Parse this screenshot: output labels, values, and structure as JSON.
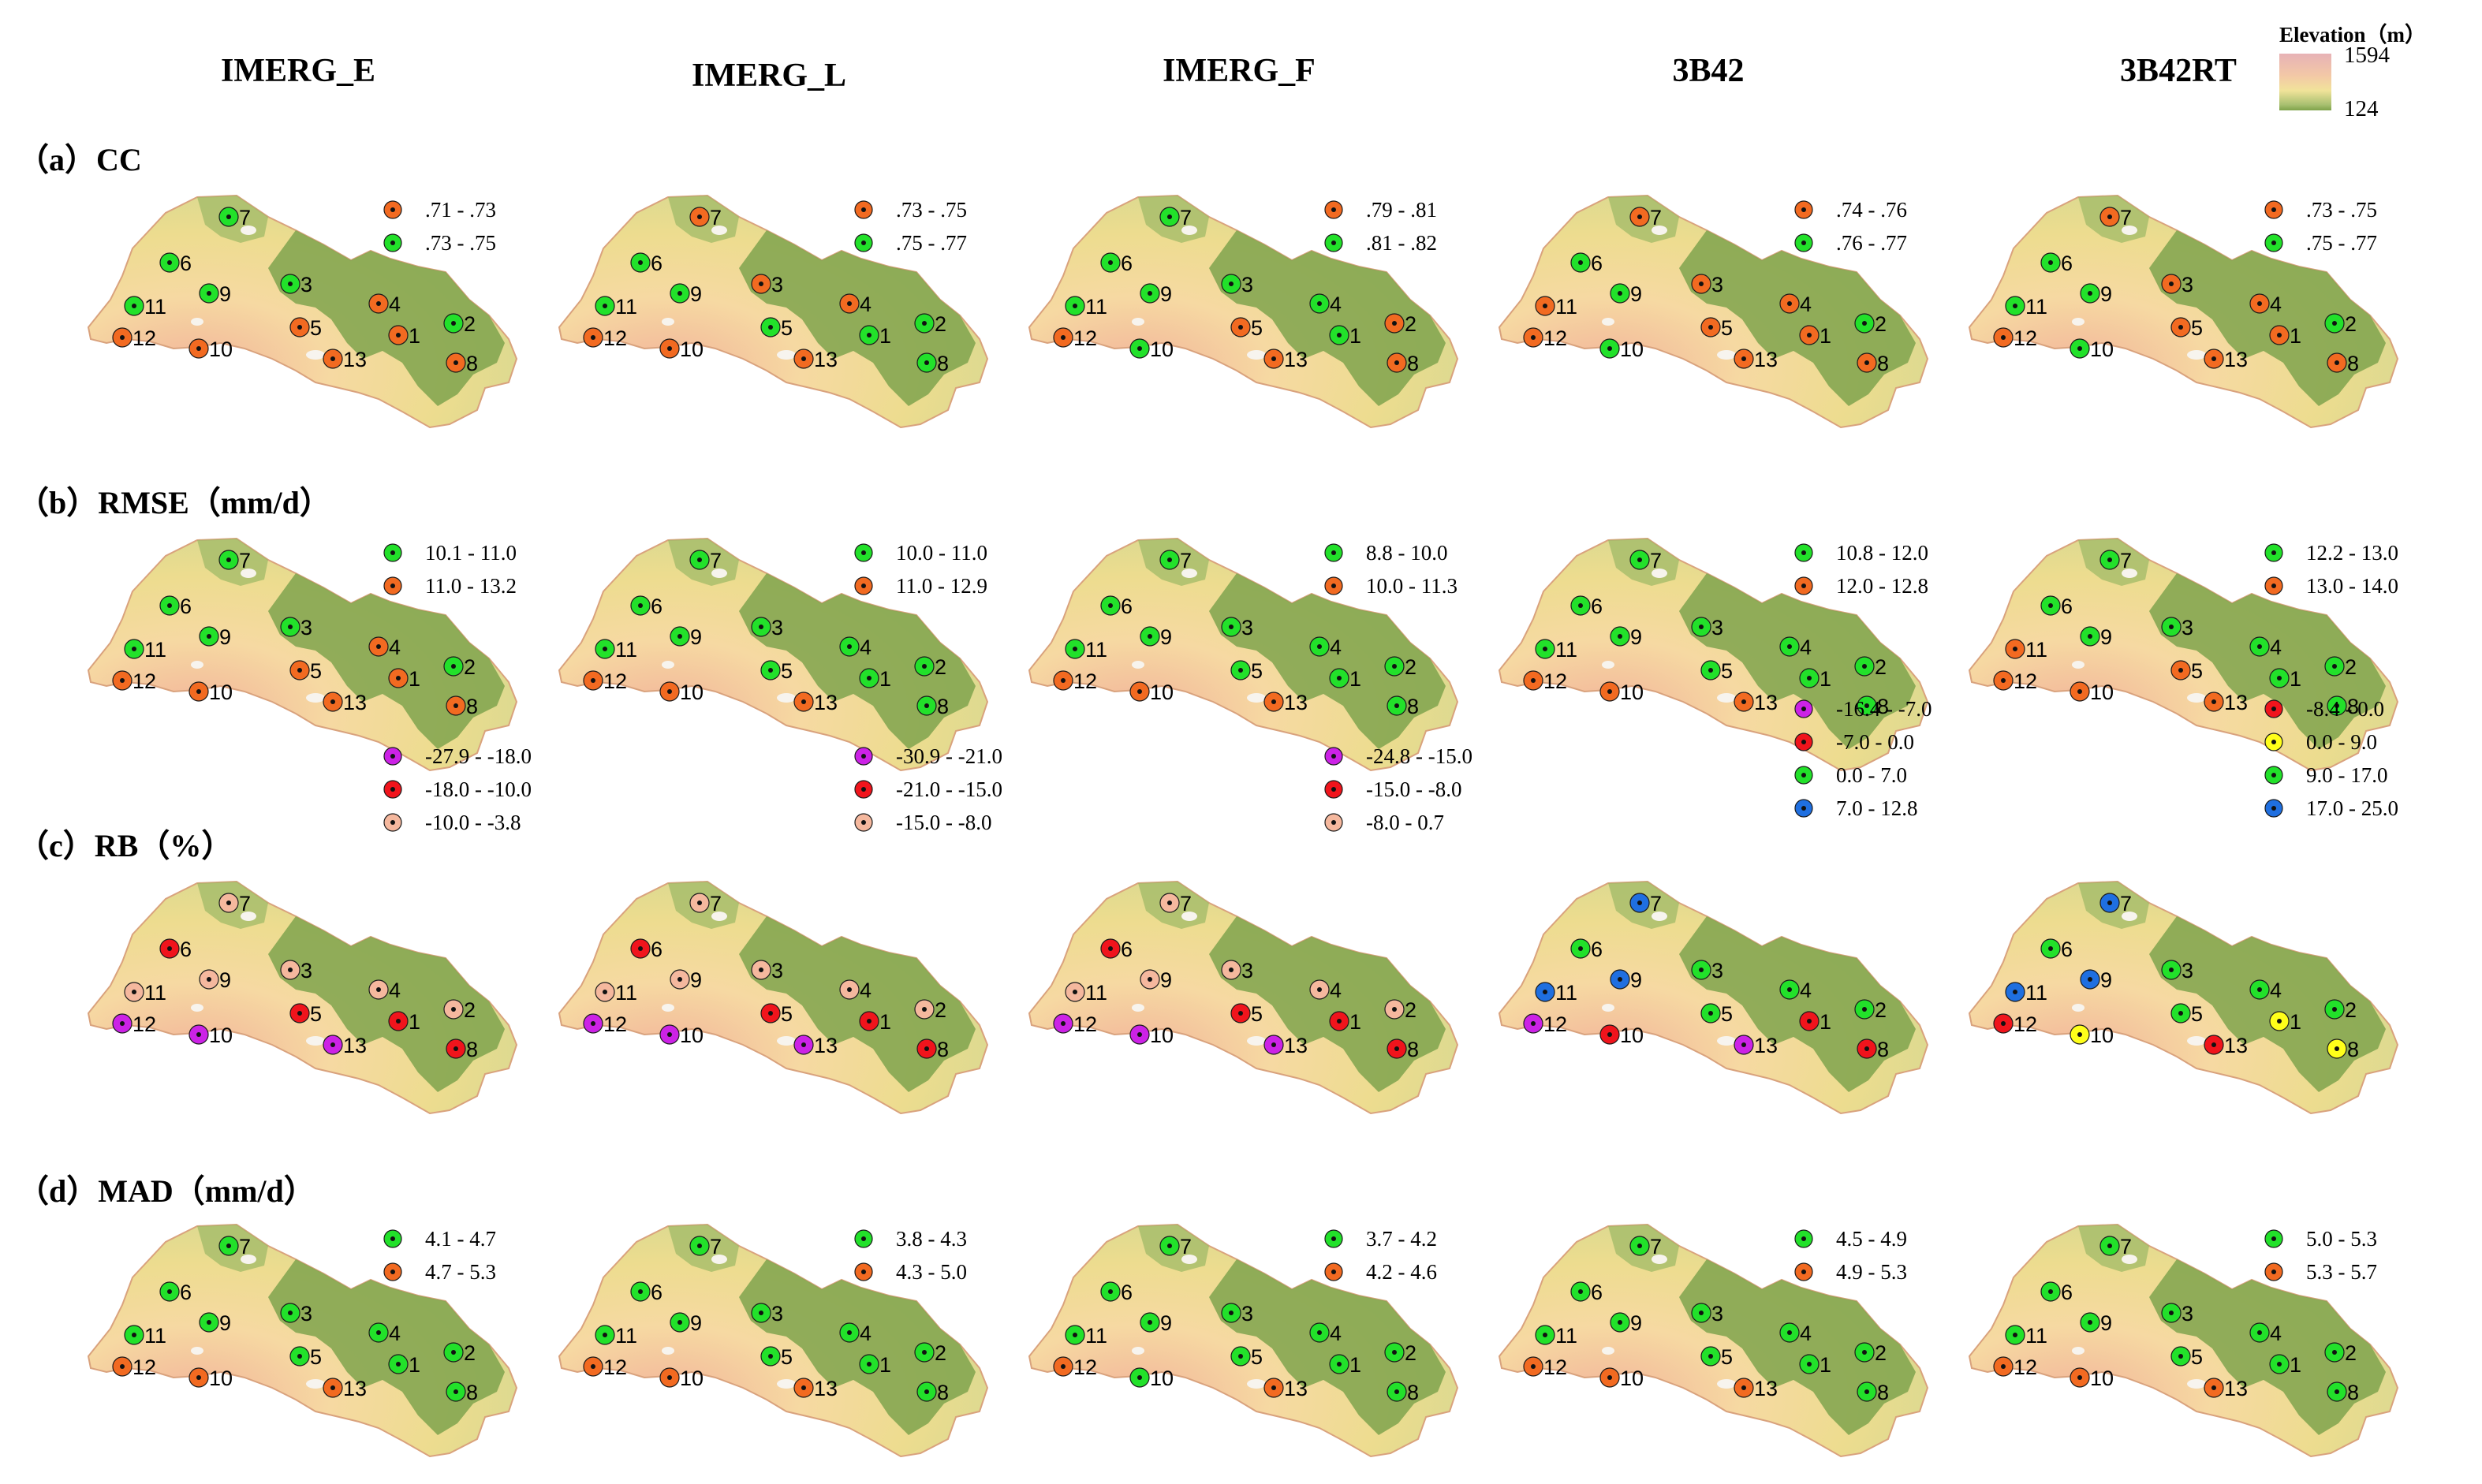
{
  "header": {
    "columns": [
      "IMERG_E",
      "IMERG_L",
      "IMERG_F",
      "3B42",
      "3B42RT"
    ],
    "elevation_legend": {
      "title": "Elevation（m）",
      "max": "1594",
      "min": "124"
    }
  },
  "colors": {
    "orange": "#f26a21",
    "green": "#22e12a",
    "magenta": "#cc22e6",
    "red": "#f0141c",
    "salmon": "#f5b89e",
    "blue": "#1f6fe0",
    "yellow": "#ffff1a"
  },
  "chart_data": {
    "type": "map",
    "stations": [
      "1",
      "2",
      "3",
      "4",
      "5",
      "6",
      "7",
      "8",
      "9",
      "10",
      "11",
      "12",
      "13"
    ],
    "panels": [
      {
        "label": "（a）CC",
        "metric": "CC",
        "products": [
          {
            "product": "IMERG_E",
            "legend": [
              {
                "range": ".71 - .73",
                "color": "orange"
              },
              {
                "range": ".73 - .75",
                "color": "green"
              }
            ],
            "stations": {
              "1": "orange",
              "2": "green",
              "3": "green",
              "4": "orange",
              "5": "orange",
              "6": "green",
              "7": "green",
              "8": "orange",
              "9": "green",
              "10": "orange",
              "11": "green",
              "12": "orange",
              "13": "orange"
            }
          },
          {
            "product": "IMERG_L",
            "legend": [
              {
                "range": ".73 - .75",
                "color": "orange"
              },
              {
                "range": ".75 - .77",
                "color": "green"
              }
            ],
            "stations": {
              "1": "green",
              "2": "green",
              "3": "orange",
              "4": "orange",
              "5": "green",
              "6": "green",
              "7": "orange",
              "8": "green",
              "9": "green",
              "10": "orange",
              "11": "green",
              "12": "orange",
              "13": "orange"
            }
          },
          {
            "product": "IMERG_F",
            "legend": [
              {
                "range": ".79 - .81",
                "color": "orange"
              },
              {
                "range": ".81 - .82",
                "color": "green"
              }
            ],
            "stations": {
              "1": "green",
              "2": "orange",
              "3": "green",
              "4": "green",
              "5": "orange",
              "6": "green",
              "7": "green",
              "8": "orange",
              "9": "green",
              "10": "green",
              "11": "green",
              "12": "orange",
              "13": "orange"
            }
          },
          {
            "product": "3B42",
            "legend": [
              {
                "range": ".74 - .76",
                "color": "orange"
              },
              {
                "range": ".76 - .77",
                "color": "green"
              }
            ],
            "stations": {
              "1": "orange",
              "2": "green",
              "3": "orange",
              "4": "orange",
              "5": "orange",
              "6": "green",
              "7": "orange",
              "8": "orange",
              "9": "green",
              "10": "green",
              "11": "orange",
              "12": "orange",
              "13": "orange"
            }
          },
          {
            "product": "3B42RT",
            "legend": [
              {
                "range": ".73 - .75",
                "color": "orange"
              },
              {
                "range": ".75 - .77",
                "color": "green"
              }
            ],
            "stations": {
              "1": "orange",
              "2": "green",
              "3": "orange",
              "4": "orange",
              "5": "orange",
              "6": "green",
              "7": "orange",
              "8": "orange",
              "9": "green",
              "10": "green",
              "11": "green",
              "12": "orange",
              "13": "orange"
            }
          }
        ]
      },
      {
        "label": "（b）RMSE（mm/d）",
        "metric": "RMSE",
        "products": [
          {
            "product": "IMERG_E",
            "legend": [
              {
                "range": "10.1 - 11.0",
                "color": "green"
              },
              {
                "range": "11.0 - 13.2",
                "color": "orange"
              }
            ],
            "stations": {
              "1": "orange",
              "2": "green",
              "3": "green",
              "4": "orange",
              "5": "orange",
              "6": "green",
              "7": "green",
              "8": "orange",
              "9": "green",
              "10": "orange",
              "11": "green",
              "12": "orange",
              "13": "orange"
            }
          },
          {
            "product": "IMERG_L",
            "legend": [
              {
                "range": "10.0 - 11.0",
                "color": "green"
              },
              {
                "range": "11.0 - 12.9",
                "color": "orange"
              }
            ],
            "stations": {
              "1": "green",
              "2": "green",
              "3": "green",
              "4": "green",
              "5": "green",
              "6": "green",
              "7": "green",
              "8": "green",
              "9": "green",
              "10": "orange",
              "11": "green",
              "12": "orange",
              "13": "orange"
            }
          },
          {
            "product": "IMERG_F",
            "legend": [
              {
                "range": "8.8 - 10.0",
                "color": "green"
              },
              {
                "range": "10.0 - 11.3",
                "color": "orange"
              }
            ],
            "stations": {
              "1": "green",
              "2": "green",
              "3": "green",
              "4": "green",
              "5": "green",
              "6": "green",
              "7": "green",
              "8": "green",
              "9": "green",
              "10": "orange",
              "11": "green",
              "12": "orange",
              "13": "orange"
            }
          },
          {
            "product": "3B42",
            "legend": [
              {
                "range": "10.8 - 12.0",
                "color": "green"
              },
              {
                "range": "12.0 - 12.8",
                "color": "orange"
              }
            ],
            "stations": {
              "1": "green",
              "2": "green",
              "3": "green",
              "4": "green",
              "5": "green",
              "6": "green",
              "7": "green",
              "8": "green",
              "9": "green",
              "10": "orange",
              "11": "green",
              "12": "orange",
              "13": "orange"
            }
          },
          {
            "product": "3B42RT",
            "legend": [
              {
                "range": "12.2 - 13.0",
                "color": "green"
              },
              {
                "range": "13.0 - 14.0",
                "color": "orange"
              }
            ],
            "stations": {
              "1": "green",
              "2": "green",
              "3": "green",
              "4": "green",
              "5": "orange",
              "6": "green",
              "7": "green",
              "8": "green",
              "9": "green",
              "10": "orange",
              "11": "orange",
              "12": "orange",
              "13": "orange"
            }
          }
        ]
      },
      {
        "label": "（c）RB（%）",
        "metric": "RB",
        "products": [
          {
            "product": "IMERG_E",
            "legend": [
              {
                "range": "-27.9 - -18.0",
                "color": "magenta"
              },
              {
                "range": "-18.0 - -10.0",
                "color": "red"
              },
              {
                "range": "-10.0 - -3.8",
                "color": "salmon"
              }
            ],
            "stations": {
              "1": "red",
              "2": "salmon",
              "3": "salmon",
              "4": "salmon",
              "5": "red",
              "6": "red",
              "7": "salmon",
              "8": "red",
              "9": "salmon",
              "10": "magenta",
              "11": "salmon",
              "12": "magenta",
              "13": "magenta"
            }
          },
          {
            "product": "IMERG_L",
            "legend": [
              {
                "range": "-30.9 - -21.0",
                "color": "magenta"
              },
              {
                "range": "-21.0 - -15.0",
                "color": "red"
              },
              {
                "range": "-15.0 - -8.0",
                "color": "salmon"
              }
            ],
            "stations": {
              "1": "red",
              "2": "salmon",
              "3": "salmon",
              "4": "salmon",
              "5": "red",
              "6": "red",
              "7": "salmon",
              "8": "red",
              "9": "salmon",
              "10": "magenta",
              "11": "salmon",
              "12": "magenta",
              "13": "magenta"
            }
          },
          {
            "product": "IMERG_F",
            "legend": [
              {
                "range": "-24.8 - -15.0",
                "color": "magenta"
              },
              {
                "range": "-15.0 - -8.0",
                "color": "red"
              },
              {
                "range": "-8.0 - 0.7",
                "color": "salmon"
              }
            ],
            "stations": {
              "1": "red",
              "2": "salmon",
              "3": "salmon",
              "4": "salmon",
              "5": "red",
              "6": "red",
              "7": "salmon",
              "8": "red",
              "9": "salmon",
              "10": "magenta",
              "11": "salmon",
              "12": "magenta",
              "13": "magenta"
            }
          },
          {
            "product": "3B42",
            "legend": [
              {
                "range": "-16.4 - -7.0",
                "color": "magenta"
              },
              {
                "range": "-7.0 - 0.0",
                "color": "red"
              },
              {
                "range": "0.0 - 7.0",
                "color": "green"
              },
              {
                "range": "7.0 - 12.8",
                "color": "blue"
              }
            ],
            "stations": {
              "1": "red",
              "2": "green",
              "3": "green",
              "4": "green",
              "5": "green",
              "6": "green",
              "7": "blue",
              "8": "red",
              "9": "blue",
              "10": "red",
              "11": "blue",
              "12": "magenta",
              "13": "magenta"
            }
          },
          {
            "product": "3B42RT",
            "legend": [
              {
                "range": "-8.4 - 0.0",
                "color": "red"
              },
              {
                "range": "0.0 - 9.0",
                "color": "yellow"
              },
              {
                "range": "9.0 - 17.0",
                "color": "green"
              },
              {
                "range": "17.0 - 25.0",
                "color": "blue"
              }
            ],
            "stations": {
              "1": "yellow",
              "2": "green",
              "3": "green",
              "4": "green",
              "5": "green",
              "6": "green",
              "7": "blue",
              "8": "yellow",
              "9": "blue",
              "10": "yellow",
              "11": "blue",
              "12": "red",
              "13": "red"
            }
          }
        ]
      },
      {
        "label": "（d）MAD（mm/d）",
        "metric": "MAD",
        "products": [
          {
            "product": "IMERG_E",
            "legend": [
              {
                "range": "4.1 - 4.7",
                "color": "green"
              },
              {
                "range": "4.7 - 5.3",
                "color": "orange"
              }
            ],
            "stations": {
              "1": "green",
              "2": "green",
              "3": "green",
              "4": "green",
              "5": "green",
              "6": "green",
              "7": "green",
              "8": "green",
              "9": "green",
              "10": "orange",
              "11": "green",
              "12": "orange",
              "13": "orange"
            }
          },
          {
            "product": "IMERG_L",
            "legend": [
              {
                "range": "3.8 - 4.3",
                "color": "green"
              },
              {
                "range": "4.3 - 5.0",
                "color": "orange"
              }
            ],
            "stations": {
              "1": "green",
              "2": "green",
              "3": "green",
              "4": "green",
              "5": "green",
              "6": "green",
              "7": "green",
              "8": "green",
              "9": "green",
              "10": "orange",
              "11": "green",
              "12": "orange",
              "13": "orange"
            }
          },
          {
            "product": "IMERG_F",
            "legend": [
              {
                "range": "3.7 - 4.2",
                "color": "green"
              },
              {
                "range": "4.2 - 4.6",
                "color": "orange"
              }
            ],
            "stations": {
              "1": "green",
              "2": "green",
              "3": "green",
              "4": "green",
              "5": "green",
              "6": "green",
              "7": "green",
              "8": "green",
              "9": "green",
              "10": "green",
              "11": "green",
              "12": "orange",
              "13": "orange"
            }
          },
          {
            "product": "3B42",
            "legend": [
              {
                "range": "4.5 - 4.9",
                "color": "green"
              },
              {
                "range": "4.9 - 5.3",
                "color": "orange"
              }
            ],
            "stations": {
              "1": "green",
              "2": "green",
              "3": "green",
              "4": "green",
              "5": "green",
              "6": "green",
              "7": "green",
              "8": "green",
              "9": "green",
              "10": "orange",
              "11": "green",
              "12": "orange",
              "13": "orange"
            }
          },
          {
            "product": "3B42RT",
            "legend": [
              {
                "range": "5.0 - 5.3",
                "color": "green"
              },
              {
                "range": "5.3 - 5.7",
                "color": "orange"
              }
            ],
            "stations": {
              "1": "green",
              "2": "green",
              "3": "green",
              "4": "green",
              "5": "green",
              "6": "green",
              "7": "green",
              "8": "green",
              "9": "green",
              "10": "orange",
              "11": "green",
              "12": "orange",
              "13": "orange"
            }
          }
        ]
      }
    ]
  }
}
